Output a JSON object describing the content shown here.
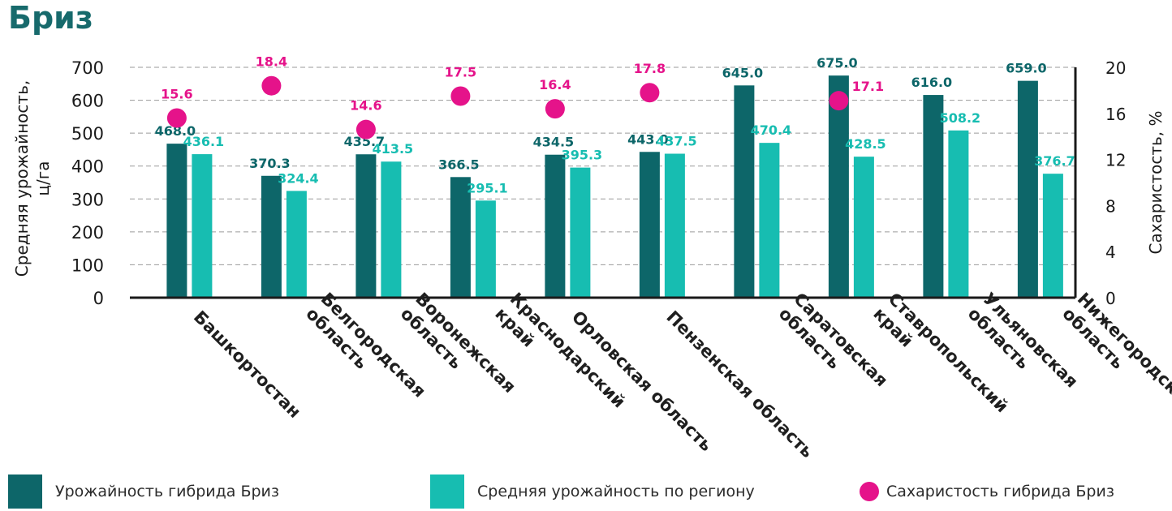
{
  "title": "Бриз",
  "legend": [
    {
      "label": "Урожайность гибрида Бриз",
      "color": "#0d6669",
      "kind": "square"
    },
    {
      "label": "Средняя урожайность по региону",
      "color": "#17bdb1",
      "kind": "square"
    },
    {
      "label": "Сахаристость гибрида Бриз",
      "color": "#e5138a",
      "kind": "dot"
    }
  ],
  "chart_data": {
    "type": "bar",
    "title": "Бриз",
    "categories": [
      "Башкортостан",
      "Белгородская область",
      "Воронежская область",
      "Краснодарский край",
      "Орловская область",
      "Пензенская область",
      "Саратовская область",
      "Ставропольский край",
      "Ульяновская область",
      "Нижегородская область"
    ],
    "category_lines": [
      [
        "Башкортостан"
      ],
      [
        "Белгородская",
        "область"
      ],
      [
        "Воронежская",
        "область"
      ],
      [
        "Краснодарский",
        "край"
      ],
      [
        "Орловская область"
      ],
      [
        "Пензенская область"
      ],
      [
        "Саратовская",
        "область"
      ],
      [
        "Ставропольский",
        "край"
      ],
      [
        "Ульяновская",
        "область"
      ],
      [
        "Нижегородская",
        "область"
      ]
    ],
    "series": [
      {
        "name": "Урожайность гибрида Бриз",
        "kind": "bar",
        "axis": "left",
        "color": "#0d6669",
        "values": [
          468.0,
          370.3,
          435.7,
          366.5,
          434.5,
          443.0,
          645.0,
          675.0,
          616.0,
          659.0
        ],
        "labels": [
          "468.0",
          "370.3",
          "435.7",
          "366.5",
          "434.5",
          "443.0",
          "645.0",
          "675.0",
          "616.0",
          "659.0"
        ]
      },
      {
        "name": "Средняя урожайность по региону",
        "kind": "bar",
        "axis": "left",
        "color": "#17bdb1",
        "values": [
          436.1,
          324.4,
          413.5,
          295.1,
          395.3,
          437.5,
          470.4,
          428.5,
          508.2,
          376.7
        ],
        "labels": [
          "436.1",
          "324.4",
          "413.5",
          "295.1",
          "395.3",
          "437.5",
          "470.4",
          "428.5",
          "508.2",
          "376.7"
        ]
      },
      {
        "name": "Сахаристость гибрида Бриз",
        "kind": "scatter",
        "axis": "right",
        "color": "#e5138a",
        "values": [
          15.6,
          18.4,
          14.6,
          17.5,
          16.4,
          17.8,
          null,
          17.1,
          null,
          null
        ],
        "labels": [
          "15.6",
          "18.4",
          "14.6",
          "17.5",
          "16.4",
          "17.8",
          "",
          "17.1",
          "",
          ""
        ]
      }
    ],
    "ylabel_left": [
      "Средняя урожайность,",
      "ц/га"
    ],
    "ylabel_right": "Сахаристость, %",
    "ylim_left": [
      0,
      700
    ],
    "ylim_right": [
      0,
      20
    ],
    "yticks_left": [
      0,
      100,
      200,
      300,
      400,
      500,
      600,
      700
    ],
    "yticks_right": [
      0,
      4,
      8,
      12,
      16,
      20
    ],
    "grid": "dashed horizontal",
    "legend_position": "bottom"
  }
}
